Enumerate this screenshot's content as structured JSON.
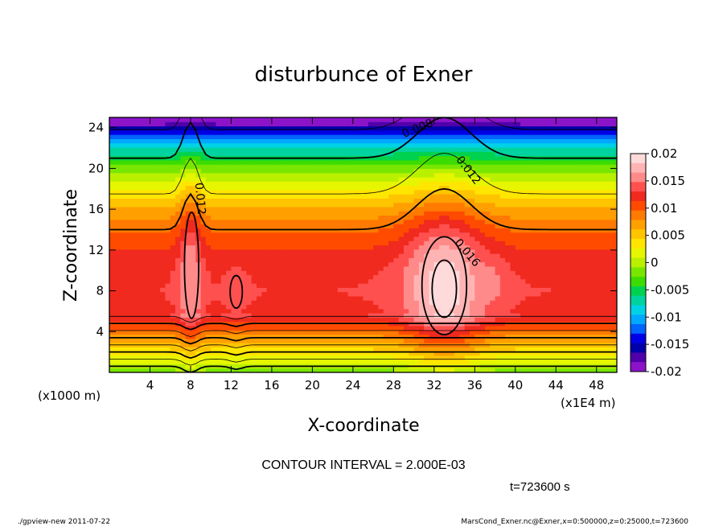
{
  "chart_data": {
    "type": "heatmap",
    "title": "disturbunce of Exner",
    "xlabel": "X-coordinate",
    "ylabel": "Z-coordinate",
    "x_units_left": "(x1000 m)",
    "x_units_right": "(x1E4 m)",
    "xlim": [
      0,
      50
    ],
    "ylim": [
      0,
      25
    ],
    "x_ticks": [
      4,
      8,
      12,
      16,
      20,
      24,
      28,
      32,
      36,
      40,
      44,
      48
    ],
    "y_ticks": [
      4,
      8,
      12,
      16,
      20,
      24
    ],
    "contour_interval_text": "CONTOUR INTERVAL = 2.000E-03",
    "time_text": "t=723600 s",
    "colorbar": {
      "tick_labels": [
        "0.02",
        "0.015",
        "0.01",
        "0.005",
        "0",
        "-0.005",
        "-0.01",
        "-0.015",
        "-0.02"
      ],
      "tick_values": [
        0.02,
        0.015,
        0.01,
        0.005,
        0,
        -0.005,
        -0.01,
        -0.015,
        -0.02
      ],
      "colors": [
        "#ffdada",
        "#ffb4b4",
        "#ff8a8a",
        "#ff5050",
        "#f02a1e",
        "#ff4b00",
        "#ff7a00",
        "#ffa000",
        "#ffc400",
        "#ffe600",
        "#e6f500",
        "#b8f000",
        "#78e600",
        "#3cdc00",
        "#00d250",
        "#00d2a0",
        "#00d2e6",
        "#00a8ff",
        "#0064ff",
        "#0000e6",
        "#0000aa",
        "#5000aa",
        "#8c14c8"
      ]
    },
    "contour_labels": [
      {
        "text": "0.008",
        "x": 30.5,
        "y": 23.6,
        "rotate": -22
      },
      {
        "text": "0.012",
        "x": 35.1,
        "y": 19.6,
        "rotate": 52
      },
      {
        "text": "0.012",
        "x": 8.6,
        "y": 17.0,
        "rotate": 85
      },
      {
        "text": "0.016",
        "x": 35.0,
        "y": 11.5,
        "rotate": 50
      }
    ]
  },
  "footer": {
    "left": "./gpview-new   2011-07-22",
    "right": "MarsCond_Exner.nc@Exner,x=0:500000,z=0:25000,t=723600"
  }
}
